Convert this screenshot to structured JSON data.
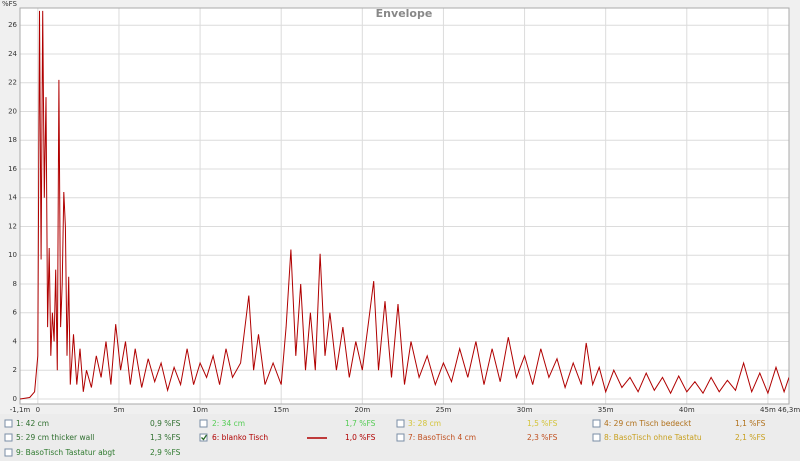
{
  "chart_data": {
    "type": "line",
    "title": "Envelope",
    "y_label": "%FS",
    "xlim": [
      -1.1,
      46.3
    ],
    "ylim": [
      -0.35,
      27.2
    ],
    "xticks": [
      {
        "value": -1.1,
        "label": "-1,1m"
      },
      0,
      {
        "value": 5,
        "label": "5m"
      },
      {
        "value": 10,
        "label": "10m"
      },
      {
        "value": 15,
        "label": "15m"
      },
      {
        "value": 20,
        "label": "20m"
      },
      {
        "value": 25,
        "label": "25m"
      },
      {
        "value": 30,
        "label": "30m"
      },
      {
        "value": 35,
        "label": "35m"
      },
      {
        "value": 40,
        "label": "40m"
      },
      {
        "value": 45,
        "label": "45m"
      },
      {
        "value": 46.3,
        "label": "46,3m"
      }
    ],
    "yticks": [
      0,
      2,
      4,
      6,
      8,
      10,
      12,
      14,
      16,
      18,
      20,
      22,
      24,
      26
    ],
    "grid": true,
    "x": [
      -1.1,
      -0.5,
      -0.2,
      0,
      0.1,
      0.2,
      0.3,
      0.4,
      0.5,
      0.6,
      0.7,
      0.8,
      0.9,
      1.0,
      1.1,
      1.2,
      1.3,
      1.4,
      1.5,
      1.6,
      1.7,
      1.8,
      1.9,
      2.0,
      2.2,
      2.4,
      2.6,
      2.8,
      3.0,
      3.3,
      3.6,
      3.9,
      4.2,
      4.5,
      4.8,
      5.1,
      5.4,
      5.7,
      6.0,
      6.4,
      6.8,
      7.2,
      7.6,
      8.0,
      8.4,
      8.8,
      9.2,
      9.6,
      10.0,
      10.4,
      10.8,
      11.2,
      11.6,
      12.0,
      12.5,
      13.0,
      13.3,
      13.6,
      14.0,
      14.5,
      15.0,
      15.3,
      15.6,
      15.9,
      16.2,
      16.5,
      16.8,
      17.1,
      17.4,
      17.7,
      18.0,
      18.4,
      18.8,
      19.2,
      19.6,
      20.0,
      20.4,
      20.7,
      21.0,
      21.4,
      21.8,
      22.2,
      22.6,
      23.0,
      23.5,
      24.0,
      24.5,
      25.0,
      25.5,
      26.0,
      26.5,
      27.0,
      27.5,
      28.0,
      28.5,
      29.0,
      29.5,
      30.0,
      30.5,
      31.0,
      31.5,
      32.0,
      32.5,
      33.0,
      33.5,
      33.8,
      34.2,
      34.6,
      35.0,
      35.5,
      36.0,
      36.5,
      37.0,
      37.5,
      38.0,
      38.5,
      39.0,
      39.5,
      40.0,
      40.5,
      41.0,
      41.5,
      42.0,
      42.5,
      43.0,
      43.5,
      44.0,
      44.5,
      45.0,
      45.5,
      46.0,
      46.3
    ],
    "traces": [
      {
        "name": "1: 42 cm",
        "reading": "0,9 %FS",
        "color": "#2f6f2f",
        "checked": false
      },
      {
        "name": "2: 34 cm",
        "reading": "1,7 %FS",
        "color": "#55cc55",
        "checked": false
      },
      {
        "name": "3: 28 cm",
        "reading": "1,5 %FS",
        "color": "#d4c43a",
        "checked": false
      },
      {
        "name": "4: 29 cm Tisch bedeckt",
        "reading": "1,1 %FS",
        "color": "#b0701a",
        "checked": false
      },
      {
        "name": "5: 29 cm thicker wall",
        "reading": "1,3 %FS",
        "color": "#2f6f2f",
        "checked": false
      },
      {
        "name": "6: blanko Tisch",
        "reading": "1,0 %FS",
        "color": "#b00000",
        "checked": true,
        "values": [
          0,
          0.1,
          0.5,
          3,
          27,
          9.7,
          27,
          14,
          21,
          5,
          10.5,
          3,
          6,
          4,
          9,
          2,
          22.2,
          5,
          8,
          14.4,
          12,
          3,
          8.5,
          1,
          4.5,
          1,
          3.5,
          0.5,
          2,
          0.8,
          3,
          1.5,
          4,
          1,
          5.2,
          2,
          4,
          1,
          3.5,
          0.8,
          2.8,
          1.2,
          2.5,
          0.6,
          2.2,
          1,
          3.5,
          1,
          2.5,
          1.5,
          3,
          1,
          3.5,
          1.5,
          2.5,
          7.2,
          2,
          4.5,
          1,
          2.5,
          1,
          5,
          10.4,
          3,
          8,
          2,
          6,
          2,
          10.1,
          3,
          6,
          2,
          5,
          1.5,
          4,
          2,
          5.5,
          8.2,
          2,
          6.8,
          1.5,
          6.6,
          1,
          4,
          1.5,
          3,
          1,
          2.5,
          1.2,
          3.5,
          1.5,
          4,
          1,
          3.5,
          1.2,
          4.3,
          1.5,
          3,
          1,
          3.5,
          1.5,
          2.8,
          0.8,
          2.5,
          1,
          3.9,
          1,
          2.2,
          0.5,
          2,
          0.8,
          1.5,
          0.5,
          1.8,
          0.6,
          1.5,
          0.4,
          1.6,
          0.5,
          1.2,
          0.4,
          1.5,
          0.5,
          1.3,
          0.6,
          2.5,
          0.5,
          1.8,
          0.4,
          2.2,
          0.5,
          1.5
        ]
      },
      {
        "name": "7: BasoTisch 4 cm",
        "reading": "2,3 %FS",
        "color": "#c05020",
        "checked": false
      },
      {
        "name": "8: BasoTisch ohne Tastatu",
        "reading": "2,1 %FS",
        "color": "#c8a020",
        "checked": false
      },
      {
        "name": "9: BasoTisch Tastatur abgt",
        "reading": "2,9 %FS",
        "color": "#2f7a2f",
        "checked": false
      }
    ]
  }
}
